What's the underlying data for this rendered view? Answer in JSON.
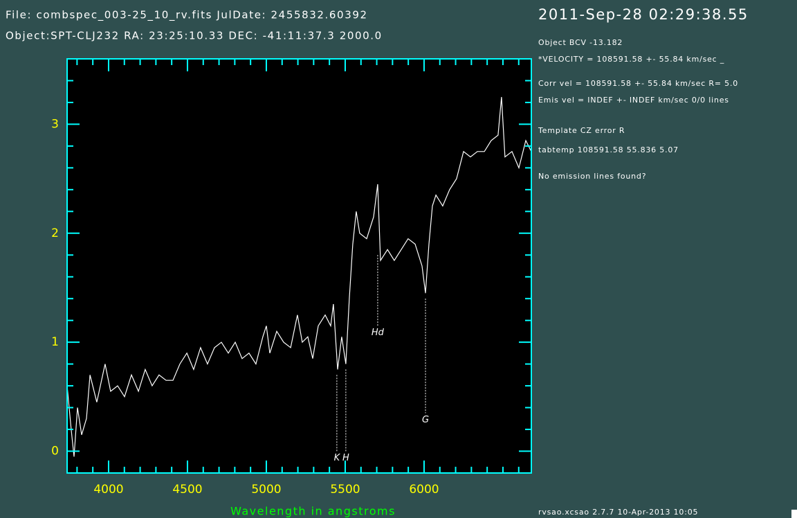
{
  "chart_data": {
    "type": "line",
    "title": "2011-Sep-28 02:29:38.55",
    "header": [
      "File: combspec_003-25_10_rv.fits  JulDate: 2455832.60392",
      "Object:SPT-CLJ232 RA: 23:25:10.33 DEC: -41:11:37.3 2000.0"
    ],
    "info": [
      "Object BCV  -13.182",
      "*VELOCITY = 108591.58 +- 55.84 km/sec _",
      "Corr vel = 108591.58 +- 55.84 km/sec R= 5.0",
      "Emis vel = INDEF +- INDEF km/sec 0/0 lines",
      "Template   CZ   error    R",
      "tabtemp 108591.58  55.836   5.07",
      "No emission lines found?"
    ],
    "footer": "rvsao.xcsao 2.7.7  10-Apr-2013 10:05",
    "xlabel": "Wavelength in angstroms",
    "x": [
      3737,
      3763,
      3781,
      3803,
      3829,
      3860,
      3882,
      3925,
      3978,
      4013,
      4057,
      4101,
      4145,
      4189,
      4232,
      4276,
      4320,
      4364,
      4408,
      4452,
      4496,
      4539,
      4583,
      4627,
      4671,
      4715,
      4759,
      4803,
      4846,
      4890,
      4934,
      4978,
      5000,
      5022,
      5066,
      5110,
      5154,
      5197,
      5228,
      5263,
      5294,
      5329,
      5373,
      5408,
      5425,
      5452,
      5478,
      5504,
      5526,
      5548,
      5570,
      5592,
      5636,
      5680,
      5706,
      5724,
      5768,
      5811,
      5855,
      5899,
      5943,
      5987,
      6009,
      6031,
      6053,
      6075,
      6118,
      6162,
      6206,
      6250,
      6294,
      6338,
      6382,
      6425,
      6469,
      6491,
      6513,
      6557,
      6601,
      6645,
      6680
    ],
    "series": [
      {
        "color": "#ffffff",
        "values": [
          0.6,
          0.2,
          -0.05,
          0.4,
          0.15,
          0.3,
          0.7,
          0.45,
          0.8,
          0.55,
          0.6,
          0.5,
          0.7,
          0.55,
          0.75,
          0.6,
          0.7,
          0.65,
          0.65,
          0.8,
          0.9,
          0.75,
          0.95,
          0.8,
          0.95,
          1.0,
          0.9,
          1.0,
          0.85,
          0.9,
          0.8,
          1.05,
          1.15,
          0.9,
          1.1,
          1.0,
          0.95,
          1.25,
          1.0,
          1.05,
          0.85,
          1.15,
          1.25,
          1.15,
          1.35,
          0.75,
          1.05,
          0.8,
          1.4,
          1.9,
          2.2,
          2.0,
          1.95,
          2.15,
          2.45,
          1.75,
          1.85,
          1.75,
          1.85,
          1.95,
          1.9,
          1.7,
          1.45,
          1.9,
          2.25,
          2.35,
          2.25,
          2.4,
          2.5,
          2.75,
          2.7,
          2.75,
          2.75,
          2.85,
          2.9,
          3.25,
          2.7,
          2.75,
          2.6,
          2.85,
          2.75
        ]
      }
    ],
    "annotations": [
      {
        "label": "K",
        "x": 5447,
        "y": 0.7,
        "y_end": 0.0
      },
      {
        "label": "H",
        "x": 5504,
        "y": 0.75,
        "y_end": 0.0
      },
      {
        "label": "Hd",
        "x": 5706,
        "y": 1.8,
        "y_end": 1.15
      },
      {
        "label": "G",
        "x": 6009,
        "y": 1.4,
        "y_end": 0.35
      }
    ],
    "xlim": [
      3737,
      6680
    ],
    "ylim": [
      -0.2,
      3.6
    ],
    "xticks": [
      4000,
      4500,
      5000,
      5500,
      6000
    ],
    "yticks": [
      0,
      1,
      2,
      3
    ],
    "xminorticks": [
      3800,
      3900,
      4100,
      4200,
      4300,
      4400,
      4600,
      4700,
      4800,
      4900,
      5100,
      5200,
      5300,
      5400,
      5600,
      5700,
      5800,
      5900,
      6100,
      6200,
      6300,
      6400,
      6500,
      6600
    ],
    "yminorticks": [
      0.2,
      0.4,
      0.6,
      0.8,
      1.2,
      1.4,
      1.6,
      1.8,
      2.2,
      2.4,
      2.6,
      2.8,
      3.2,
      3.4
    ],
    "axis_color": "#00ffff",
    "tick_label_color": "#ffff00",
    "xlabel_color": "#00ff00",
    "plot_background": "#000000"
  }
}
